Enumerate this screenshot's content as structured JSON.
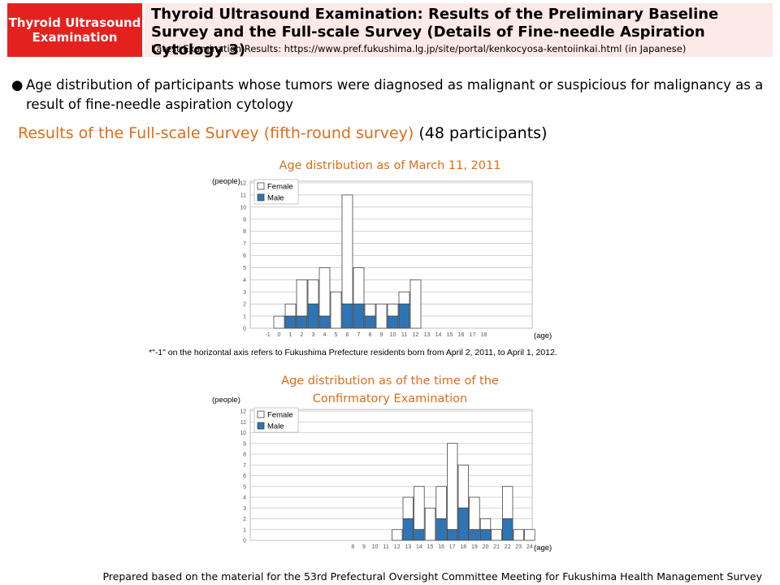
{
  "header": {
    "tag": "Thyroid Ultrasound Examination",
    "title": "Thyroid Ultrasound Examination: Results of the Preliminary Baseline Survey and the Full-scale Survey (Details of Fine-needle Aspiration Cytology 3)",
    "url_line": "Latest Examination Results: https://www.pref.fukushima.lg.jp/site/portal/kenkocyosa-kentoiinkai.html (in Japanese)"
  },
  "bullet": {
    "symbol": "●",
    "text": "Age distribution of participants whose tumors were diagnosed as malignant or suspicious for malignancy as a result of fine-needle aspiration cytology"
  },
  "subheading": {
    "orange": "Results of the Full-scale Survey (fifth-round survey)",
    "black": "(48 participants)"
  },
  "note": "*\"-1\" on the horizontal axis refers to Fukushima Prefecture residents born from April 2, 2011, to April 1, 2012.",
  "footer": "Prepared based on the material for the 53rd Prefectural Oversight Committee Meeting for Fukushima Health Management Survey",
  "colors": {
    "female": "#ffffff",
    "male": "#2e75b6",
    "title": "#e06c1b",
    "grid": "#c8c8c8",
    "tag": "#e4211e",
    "header_bg": "#fde9e7"
  },
  "chart_data": [
    {
      "type": "bar",
      "stacked": true,
      "title": "Age distribution as of March 11, 2011",
      "ylabel": "(people)",
      "xlabel": "(age)",
      "ylim": [
        0,
        12
      ],
      "yticks": [
        0,
        1,
        2,
        3,
        4,
        5,
        6,
        7,
        8,
        9,
        10,
        11,
        12
      ],
      "grid": true,
      "legend": "top-left",
      "categories": [
        "-1",
        "0",
        "1",
        "2",
        "3",
        "4",
        "5",
        "6",
        "7",
        "8",
        "9",
        "10",
        "11",
        "12",
        "13",
        "14",
        "15",
        "16",
        "17",
        "18"
      ],
      "series": [
        {
          "name": "Male",
          "color": "#2e75b6",
          "values": [
            0,
            0,
            1,
            1,
            2,
            1,
            0,
            2,
            2,
            1,
            0,
            1,
            2,
            0,
            0,
            0,
            0,
            0,
            0,
            0
          ]
        },
        {
          "name": "Female",
          "color": "#ffffff",
          "values": [
            0,
            1,
            1,
            3,
            2,
            4,
            3,
            9,
            3,
            1,
            2,
            1,
            1,
            4,
            0,
            0,
            0,
            0,
            0,
            0
          ]
        }
      ]
    },
    {
      "type": "bar",
      "stacked": true,
      "title": "Age distribution as of the time of the Confirmatory Examination",
      "ylabel": "(people)",
      "xlabel": "(age)",
      "ylim": [
        0,
        12
      ],
      "yticks": [
        0,
        1,
        2,
        3,
        4,
        5,
        6,
        7,
        8,
        9,
        10,
        11,
        12
      ],
      "grid": true,
      "legend": "top-left",
      "categories": [
        "8",
        "9",
        "10",
        "11",
        "12",
        "13",
        "14",
        "15",
        "16",
        "17",
        "18",
        "19",
        "20",
        "21",
        "22",
        "23",
        "24"
      ],
      "series": [
        {
          "name": "Male",
          "color": "#2e75b6",
          "values": [
            0,
            0,
            0,
            0,
            0,
            2,
            1,
            0,
            2,
            1,
            3,
            1,
            1,
            0,
            2,
            0,
            0
          ]
        },
        {
          "name": "Female",
          "color": "#ffffff",
          "values": [
            0,
            0,
            0,
            0,
            1,
            2,
            4,
            3,
            3,
            8,
            4,
            3,
            1,
            1,
            3,
            1,
            1
          ]
        }
      ]
    }
  ]
}
